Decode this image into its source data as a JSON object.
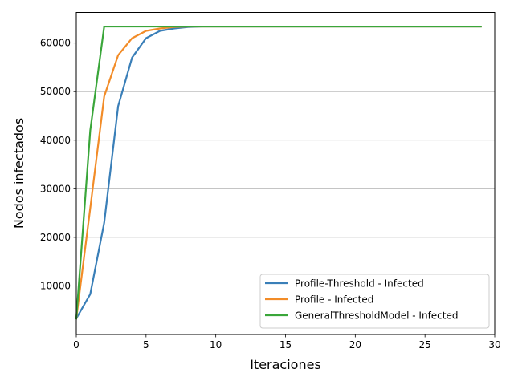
{
  "chart_data": {
    "type": "line",
    "title": "",
    "xlabel": "Iteraciones",
    "ylabel": "Nodos infectados",
    "xlim": [
      0,
      30
    ],
    "ylim": [
      0,
      66300
    ],
    "xticks": [
      0,
      5,
      10,
      15,
      20,
      25,
      30
    ],
    "yticks": [
      10000,
      20000,
      30000,
      40000,
      50000,
      60000
    ],
    "grid": "horizontal",
    "legend_position": "bottom-right",
    "x": [
      0,
      1,
      2,
      3,
      4,
      5,
      6,
      7,
      8,
      9,
      10,
      11,
      12,
      13,
      14,
      15,
      16,
      17,
      18,
      19,
      20,
      21,
      22,
      23,
      24,
      25,
      26,
      27,
      28,
      29
    ],
    "series": [
      {
        "name": "Profile-Threshold - Infected",
        "color": "#3a7fb8",
        "values": [
          3300,
          8300,
          23000,
          47000,
          57000,
          61000,
          62500,
          63000,
          63300,
          63400,
          63400,
          63400,
          63400,
          63400,
          63400,
          63400,
          63400,
          63400,
          63400,
          63400,
          63400,
          63400,
          63400,
          63400,
          63400,
          63400,
          63400,
          63400,
          63400,
          63400
        ]
      },
      {
        "name": "Profile - Infected",
        "color": "#f28c28",
        "values": [
          3300,
          26000,
          49000,
          57500,
          61000,
          62500,
          63000,
          63300,
          63400,
          63400,
          63400,
          63400,
          63400,
          63400,
          63400,
          63400,
          63400,
          63400,
          63400,
          63400,
          63400,
          63400,
          63400,
          63400,
          63400,
          63400,
          63400,
          63400,
          63400,
          63400
        ]
      },
      {
        "name": "GeneralThresholdModel - Infected",
        "color": "#3aa63a",
        "values": [
          3300,
          42000,
          63400,
          63400,
          63400,
          63400,
          63400,
          63400,
          63400,
          63400,
          63400,
          63400,
          63400,
          63400,
          63400,
          63400,
          63400,
          63400,
          63400,
          63400,
          63400,
          63400,
          63400,
          63400,
          63400,
          63400,
          63400,
          63400,
          63400,
          63400
        ]
      }
    ]
  }
}
